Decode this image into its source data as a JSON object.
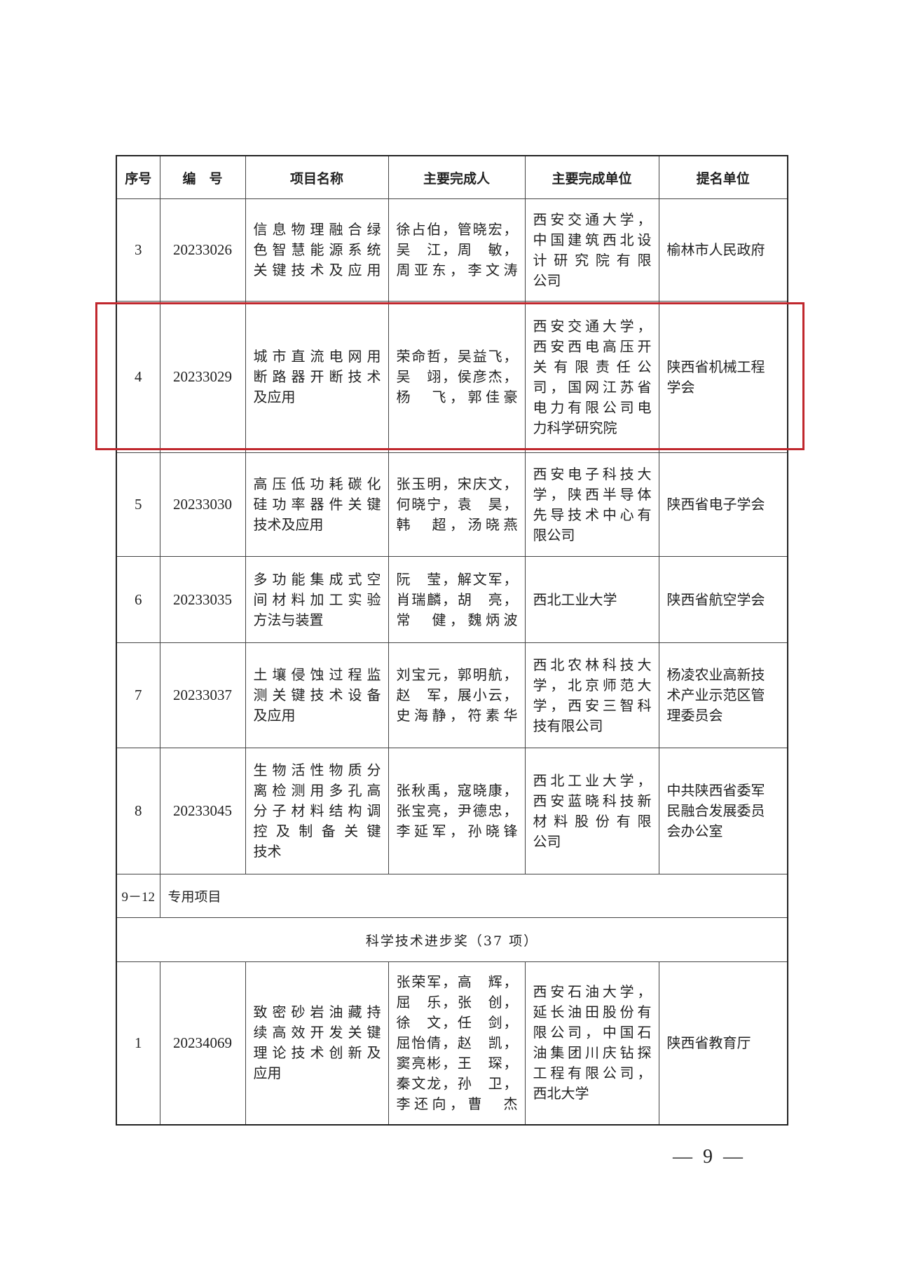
{
  "table": {
    "headers": [
      "序号",
      "编　号",
      "项目名称",
      "主要完成人",
      "主要完成单位",
      "提名单位"
    ],
    "rows": [
      {
        "no": "3",
        "code": "20233026",
        "name": [
          "信息物理融合绿",
          "色智慧能源系统",
          "关键技术及应用"
        ],
        "people": [
          "徐占伯，管晓宏，",
          "吴　江，周　敏，",
          "周亚东，李文涛"
        ],
        "units": [
          "西安交通大学，",
          "中国建筑西北设",
          "计研究院有限",
          "公司"
        ],
        "nominator": [
          "榆林市人民政府"
        ]
      },
      {
        "no": "4",
        "code": "20233029",
        "name": [
          "城市直流电网用",
          "断路器开断技术",
          "及应用"
        ],
        "people": [
          "荣命哲，吴益飞，",
          "吴　翊，侯彦杰，",
          "杨　飞，郭佳豪"
        ],
        "units": [
          "西安交通大学，",
          "西安西电高压开",
          "关有限责任公",
          "司，国网江苏省",
          "电力有限公司电",
          "力科学研究院"
        ],
        "nominator": [
          "陕西省机械工程",
          "学会"
        ]
      },
      {
        "no": "5",
        "code": "20233030",
        "name": [
          "高压低功耗碳化",
          "硅功率器件关键",
          "技术及应用"
        ],
        "people": [
          "张玉明，宋庆文，",
          "何晓宁，袁　昊，",
          "韩　超，汤晓燕"
        ],
        "units": [
          "西安电子科技大",
          "学，陕西半导体",
          "先导技术中心有",
          "限公司"
        ],
        "nominator": [
          "陕西省电子学会"
        ]
      },
      {
        "no": "6",
        "code": "20233035",
        "name": [
          "多功能集成式空",
          "间材料加工实验",
          "方法与装置"
        ],
        "people": [
          "阮　莹，解文军，",
          "肖瑞麟，胡　亮，",
          "常　健，魏炳波"
        ],
        "units": [
          "西北工业大学"
        ],
        "nominator": [
          "陕西省航空学会"
        ]
      },
      {
        "no": "7",
        "code": "20233037",
        "name": [
          "土壤侵蚀过程监",
          "测关键技术设备",
          "及应用"
        ],
        "people": [
          "刘宝元，郭明航，",
          "赵　军，展小云，",
          "史海静，符素华"
        ],
        "units": [
          "西北农林科技大",
          "学，北京师范大",
          "学，西安三智科",
          "技有限公司"
        ],
        "nominator": [
          "杨凌农业高新技",
          "术产业示范区管",
          "理委员会"
        ]
      },
      {
        "no": "8",
        "code": "20233045",
        "name": [
          "生物活性物质分",
          "离检测用多孔高",
          "分子材料结构调",
          "控及制备关键",
          "技术"
        ],
        "people": [
          "张秋禹，寇晓康，",
          "张宝亮，尹德忠，",
          "李延军，孙晓锋"
        ],
        "units": [
          "西北工业大学，",
          "西安蓝晓科技新",
          "材料股份有限",
          "公司"
        ],
        "nominator": [
          "中共陕西省委军",
          "民融合发展委员",
          "会办公室"
        ]
      }
    ],
    "special_row": {
      "no": "9－12",
      "text": "专用项目"
    },
    "section_title": "科学技术进步奖（37 项）",
    "rows2": [
      {
        "no": "1",
        "code": "20234069",
        "name": [
          "致密砂岩油藏持",
          "续高效开发关键",
          "理论技术创新及",
          "应用"
        ],
        "people": [
          "张荣军，高　辉，",
          "屈　乐，张　创，",
          "徐　文，任　剑，",
          "屈怡倩，赵　凯，",
          "窦亮彬，王　琛，",
          "秦文龙，孙　卫，",
          "李还向，曹　杰"
        ],
        "units": [
          "西安石油大学，",
          "延长油田股份有",
          "限公司，中国石",
          "油集团川庆钻探",
          "工程有限公司，",
          "西北大学"
        ],
        "nominator": [
          "陕西省教育厅"
        ]
      }
    ]
  },
  "highlight_color": "#c0272d",
  "page_number": "— 9 —"
}
